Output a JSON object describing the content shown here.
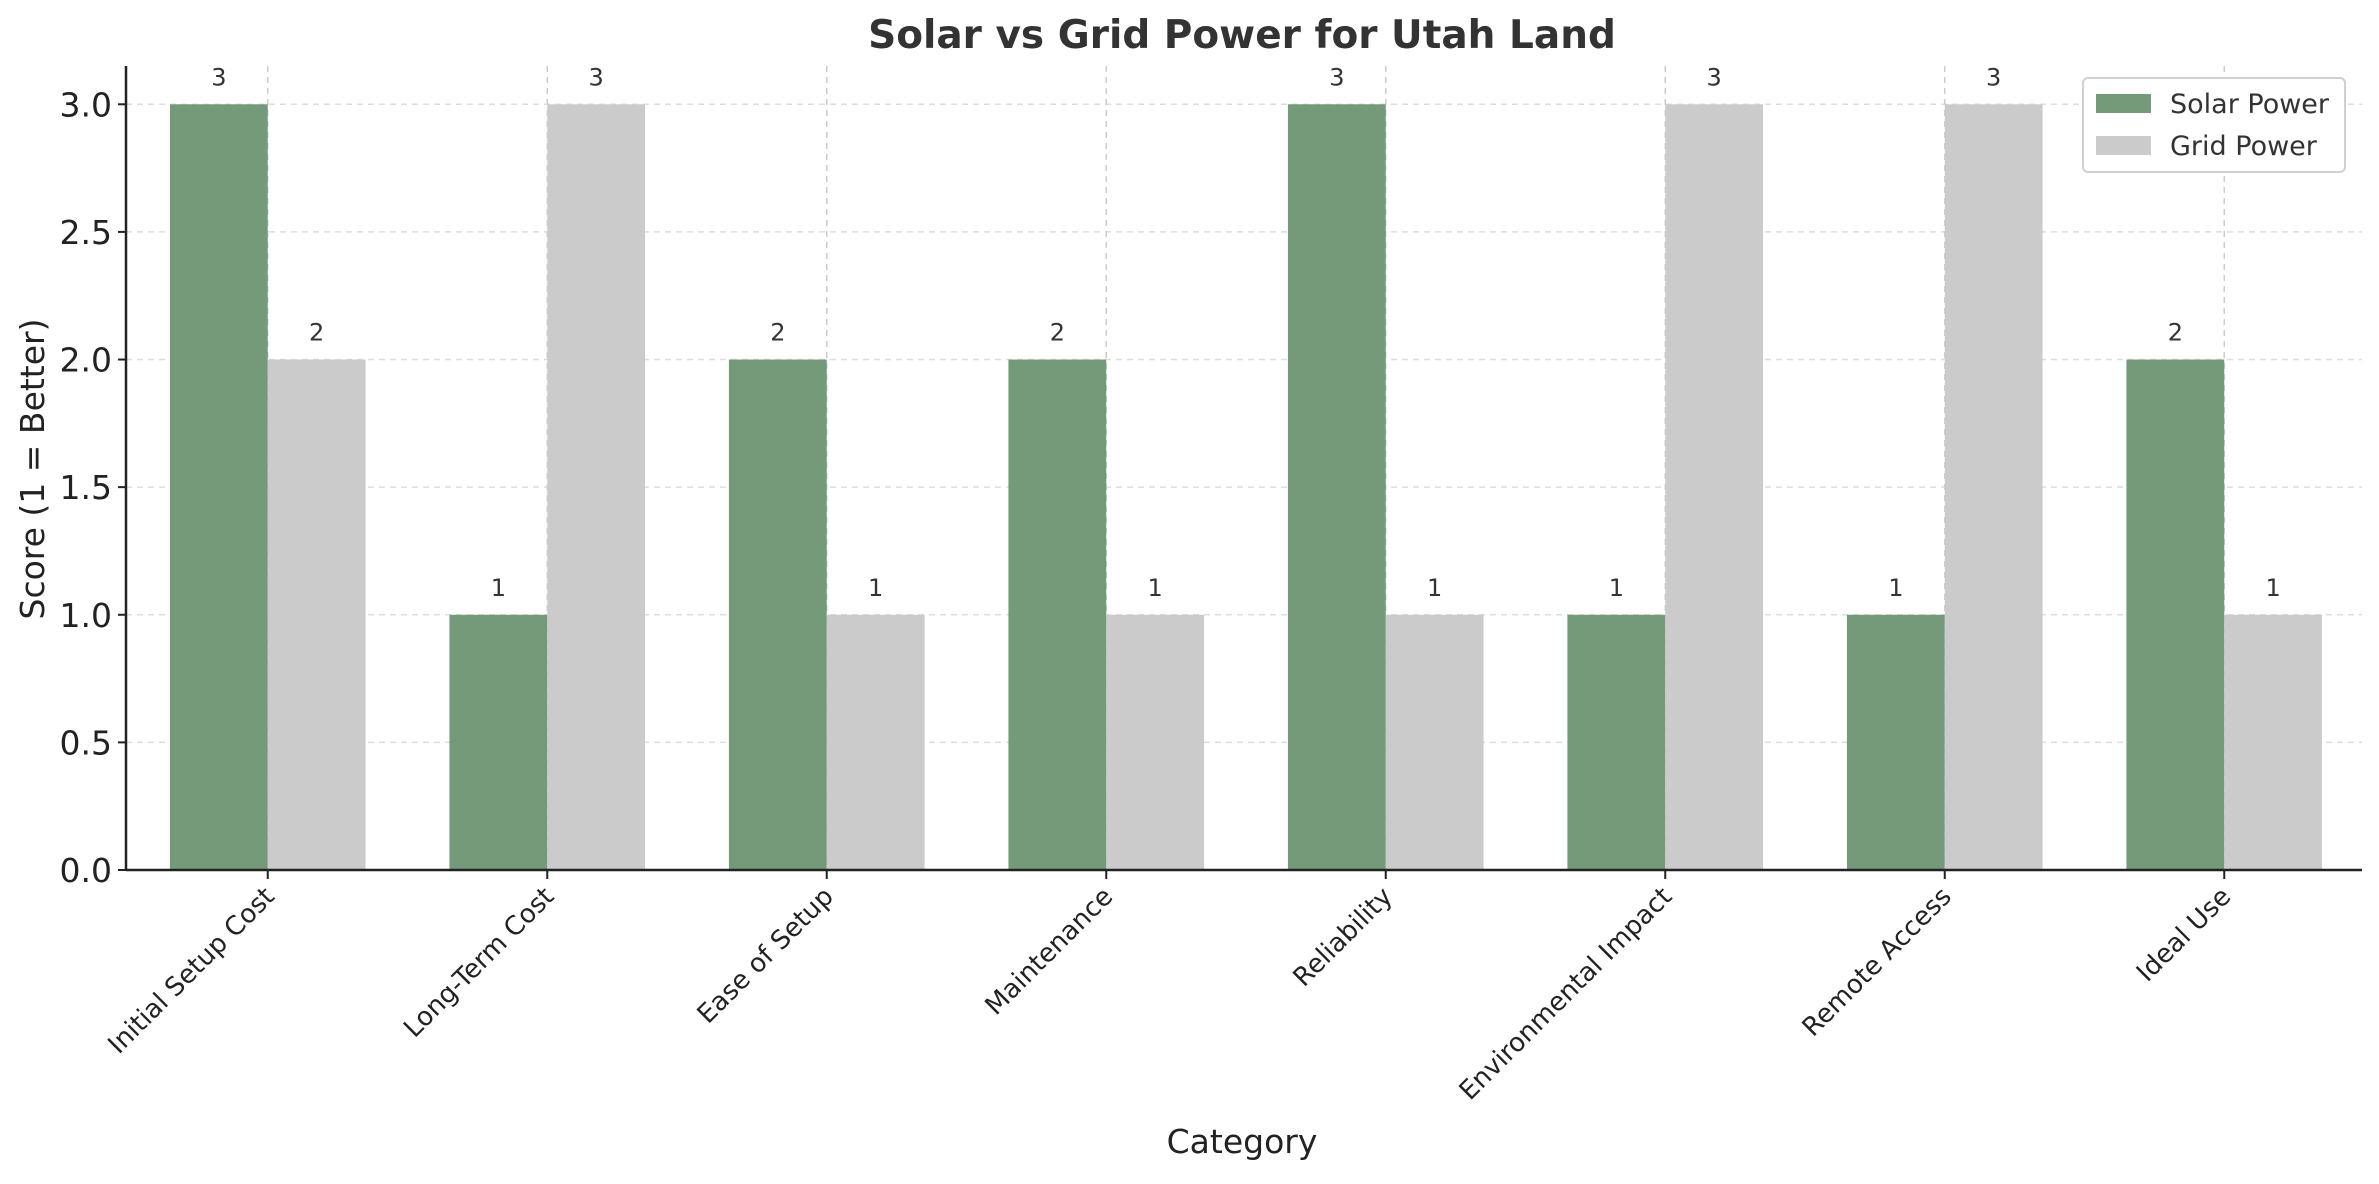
{
  "chart_data": {
    "type": "bar",
    "title": "Solar vs Grid Power for Utah Land",
    "xlabel": "Category",
    "ylabel": "Score (1 = Better)",
    "categories": [
      "Initial Setup Cost",
      "Long-Term Cost",
      "Ease of Setup",
      "Maintenance",
      "Reliability",
      "Environmental Impact",
      "Remote Access",
      "Ideal Use"
    ],
    "series": [
      {
        "name": "Solar Power",
        "color": "#749a79",
        "values": [
          3,
          1,
          2,
          2,
          3,
          1,
          1,
          2
        ]
      },
      {
        "name": "Grid Power",
        "color": "#cbcbcb",
        "values": [
          2,
          3,
          1,
          1,
          1,
          3,
          3,
          1
        ]
      }
    ],
    "ylim": [
      0,
      3.15
    ],
    "yticks": [
      "0.0",
      "0.5",
      "1.0",
      "1.5",
      "2.0",
      "2.5",
      "3.0"
    ],
    "grid": true,
    "legend_position": "top-right"
  }
}
